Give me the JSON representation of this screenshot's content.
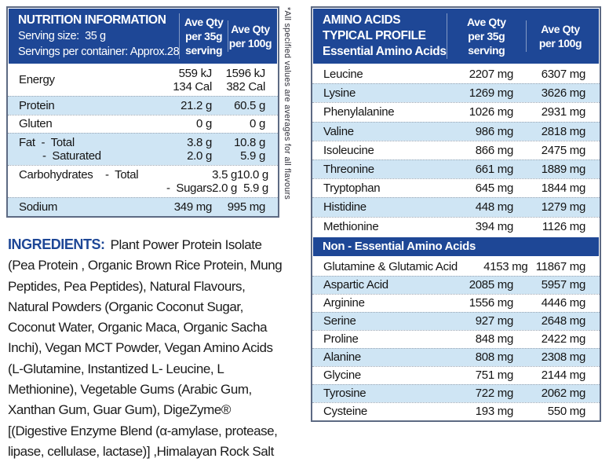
{
  "colors": {
    "header_blue": "#1e4796",
    "row_alt_blue": "#cfe5f4",
    "border_gray_blue": "#5d6a83"
  },
  "side_note": "*All specified values are averages for all flavours",
  "nutrition": {
    "title": "NUTRITION INFORMATION",
    "serving_size": "Serving size:  35 g",
    "servings_per_container": "Servings per container: Approx.28",
    "col_35": "Ave Qty\nper 35g\nserving",
    "col_100": "Ave Qty\nper 100g",
    "rows": [
      {
        "shade": false,
        "label_lines": [
          {
            "text": "Energy",
            "indent": 0
          }
        ],
        "v35_lines": [
          "559 kJ",
          "134 Cal"
        ],
        "v100_lines": [
          "1596 kJ",
          "382 Cal"
        ]
      },
      {
        "shade": true,
        "label_lines": [
          {
            "text": "Protein",
            "indent": 0
          }
        ],
        "v35_lines": [
          "21.2 g"
        ],
        "v100_lines": [
          "60.5 g"
        ]
      },
      {
        "shade": false,
        "label_lines": [
          {
            "text": "Gluten",
            "indent": 0
          }
        ],
        "v35_lines": [
          "0 g"
        ],
        "v100_lines": [
          "0 g"
        ]
      },
      {
        "shade": true,
        "label_lines": [
          {
            "text": "Fat  -  Total",
            "indent": 0
          },
          {
            "text": "-  Saturated",
            "indent": 1
          }
        ],
        "v35_lines": [
          "3.8 g",
          "2.0 g"
        ],
        "v100_lines": [
          "10.8 g",
          "5.9 g"
        ]
      },
      {
        "shade": false,
        "label_lines": [
          {
            "text": "Carbohydrates    -  Total",
            "indent": 0
          },
          {
            "text": "-  Sugars",
            "indent": 2
          }
        ],
        "v35_lines": [
          "3.5 g",
          "2.0 g"
        ],
        "v100_lines": [
          "10.0 g",
          "5.9 g"
        ]
      },
      {
        "shade": true,
        "label_lines": [
          {
            "text": "Sodium",
            "indent": 0
          }
        ],
        "v35_lines": [
          "349 mg"
        ],
        "v100_lines": [
          "995 mg"
        ]
      }
    ]
  },
  "ingredients": {
    "label": "INGREDIENTS:",
    "text": "Plant Power Protein Isolate (Pea Protein , Organic Brown Rice Protein, Mung Peptides, Pea Peptides), Natural Flavours, Natural Powders (Organic Coconut Sugar, Coconut Water, Organic Maca, Organic Sacha Inchi), Vegan MCT Powder, Vegan Amino Acids (L-Glutamine, Instantized L- Leucine, L Methionine), Vegetable Gums (Arabic Gum, Xanthan Gum, Guar Gum), DigeZyme® [(Digestive Enzyme Blend (α-amylase, protease, lipase, cellulase, lactase)] ,Himalayan Rock Salt"
  },
  "amino": {
    "title_line1": "AMINO ACIDS",
    "title_line2": "TYPICAL PROFILE",
    "title_line3": "Essential Amino Acids",
    "col_35": "Ave Qty\nper 35g\nserving",
    "col_100": "Ave Qty\nper 100g",
    "essential": [
      {
        "label": "Leucine",
        "v35": "2207 mg",
        "v100": "6307 mg"
      },
      {
        "label": "Lysine",
        "v35": "1269 mg",
        "v100": "3626 mg"
      },
      {
        "label": "Phenylalanine",
        "v35": "1026 mg",
        "v100": "2931 mg"
      },
      {
        "label": "Valine",
        "v35": "986 mg",
        "v100": "2818 mg"
      },
      {
        "label": "Isoleucine",
        "v35": "866 mg",
        "v100": "2475 mg"
      },
      {
        "label": "Threonine",
        "v35": "661 mg",
        "v100": "1889 mg"
      },
      {
        "label": "Tryptophan",
        "v35": "645 mg",
        "v100": "1844 mg"
      },
      {
        "label": "Histidine",
        "v35": "448 mg",
        "v100": "1279 mg"
      },
      {
        "label": "Methionine",
        "v35": "394 mg",
        "v100": "1126 mg"
      }
    ],
    "non_essential_header": "Non - Essential Amino Acids",
    "non_essential": [
      {
        "label": "Glutamine & Glutamic Acid",
        "v35": "4153 mg",
        "v100": "11867 mg"
      },
      {
        "label": "Aspartic Acid",
        "v35": "2085 mg",
        "v100": "5957 mg"
      },
      {
        "label": "Arginine",
        "v35": "1556 mg",
        "v100": "4446 mg"
      },
      {
        "label": "Serine",
        "v35": "927 mg",
        "v100": "2648 mg"
      },
      {
        "label": "Proline",
        "v35": "848 mg",
        "v100": "2422 mg"
      },
      {
        "label": "Alanine",
        "v35": "808 mg",
        "v100": "2308 mg"
      },
      {
        "label": "Glycine",
        "v35": "751 mg",
        "v100": "2144 mg"
      },
      {
        "label": "Tyrosine",
        "v35": "722 mg",
        "v100": "2062 mg"
      },
      {
        "label": "Cysteine",
        "v35": "193 mg",
        "v100": "550 mg"
      }
    ]
  }
}
